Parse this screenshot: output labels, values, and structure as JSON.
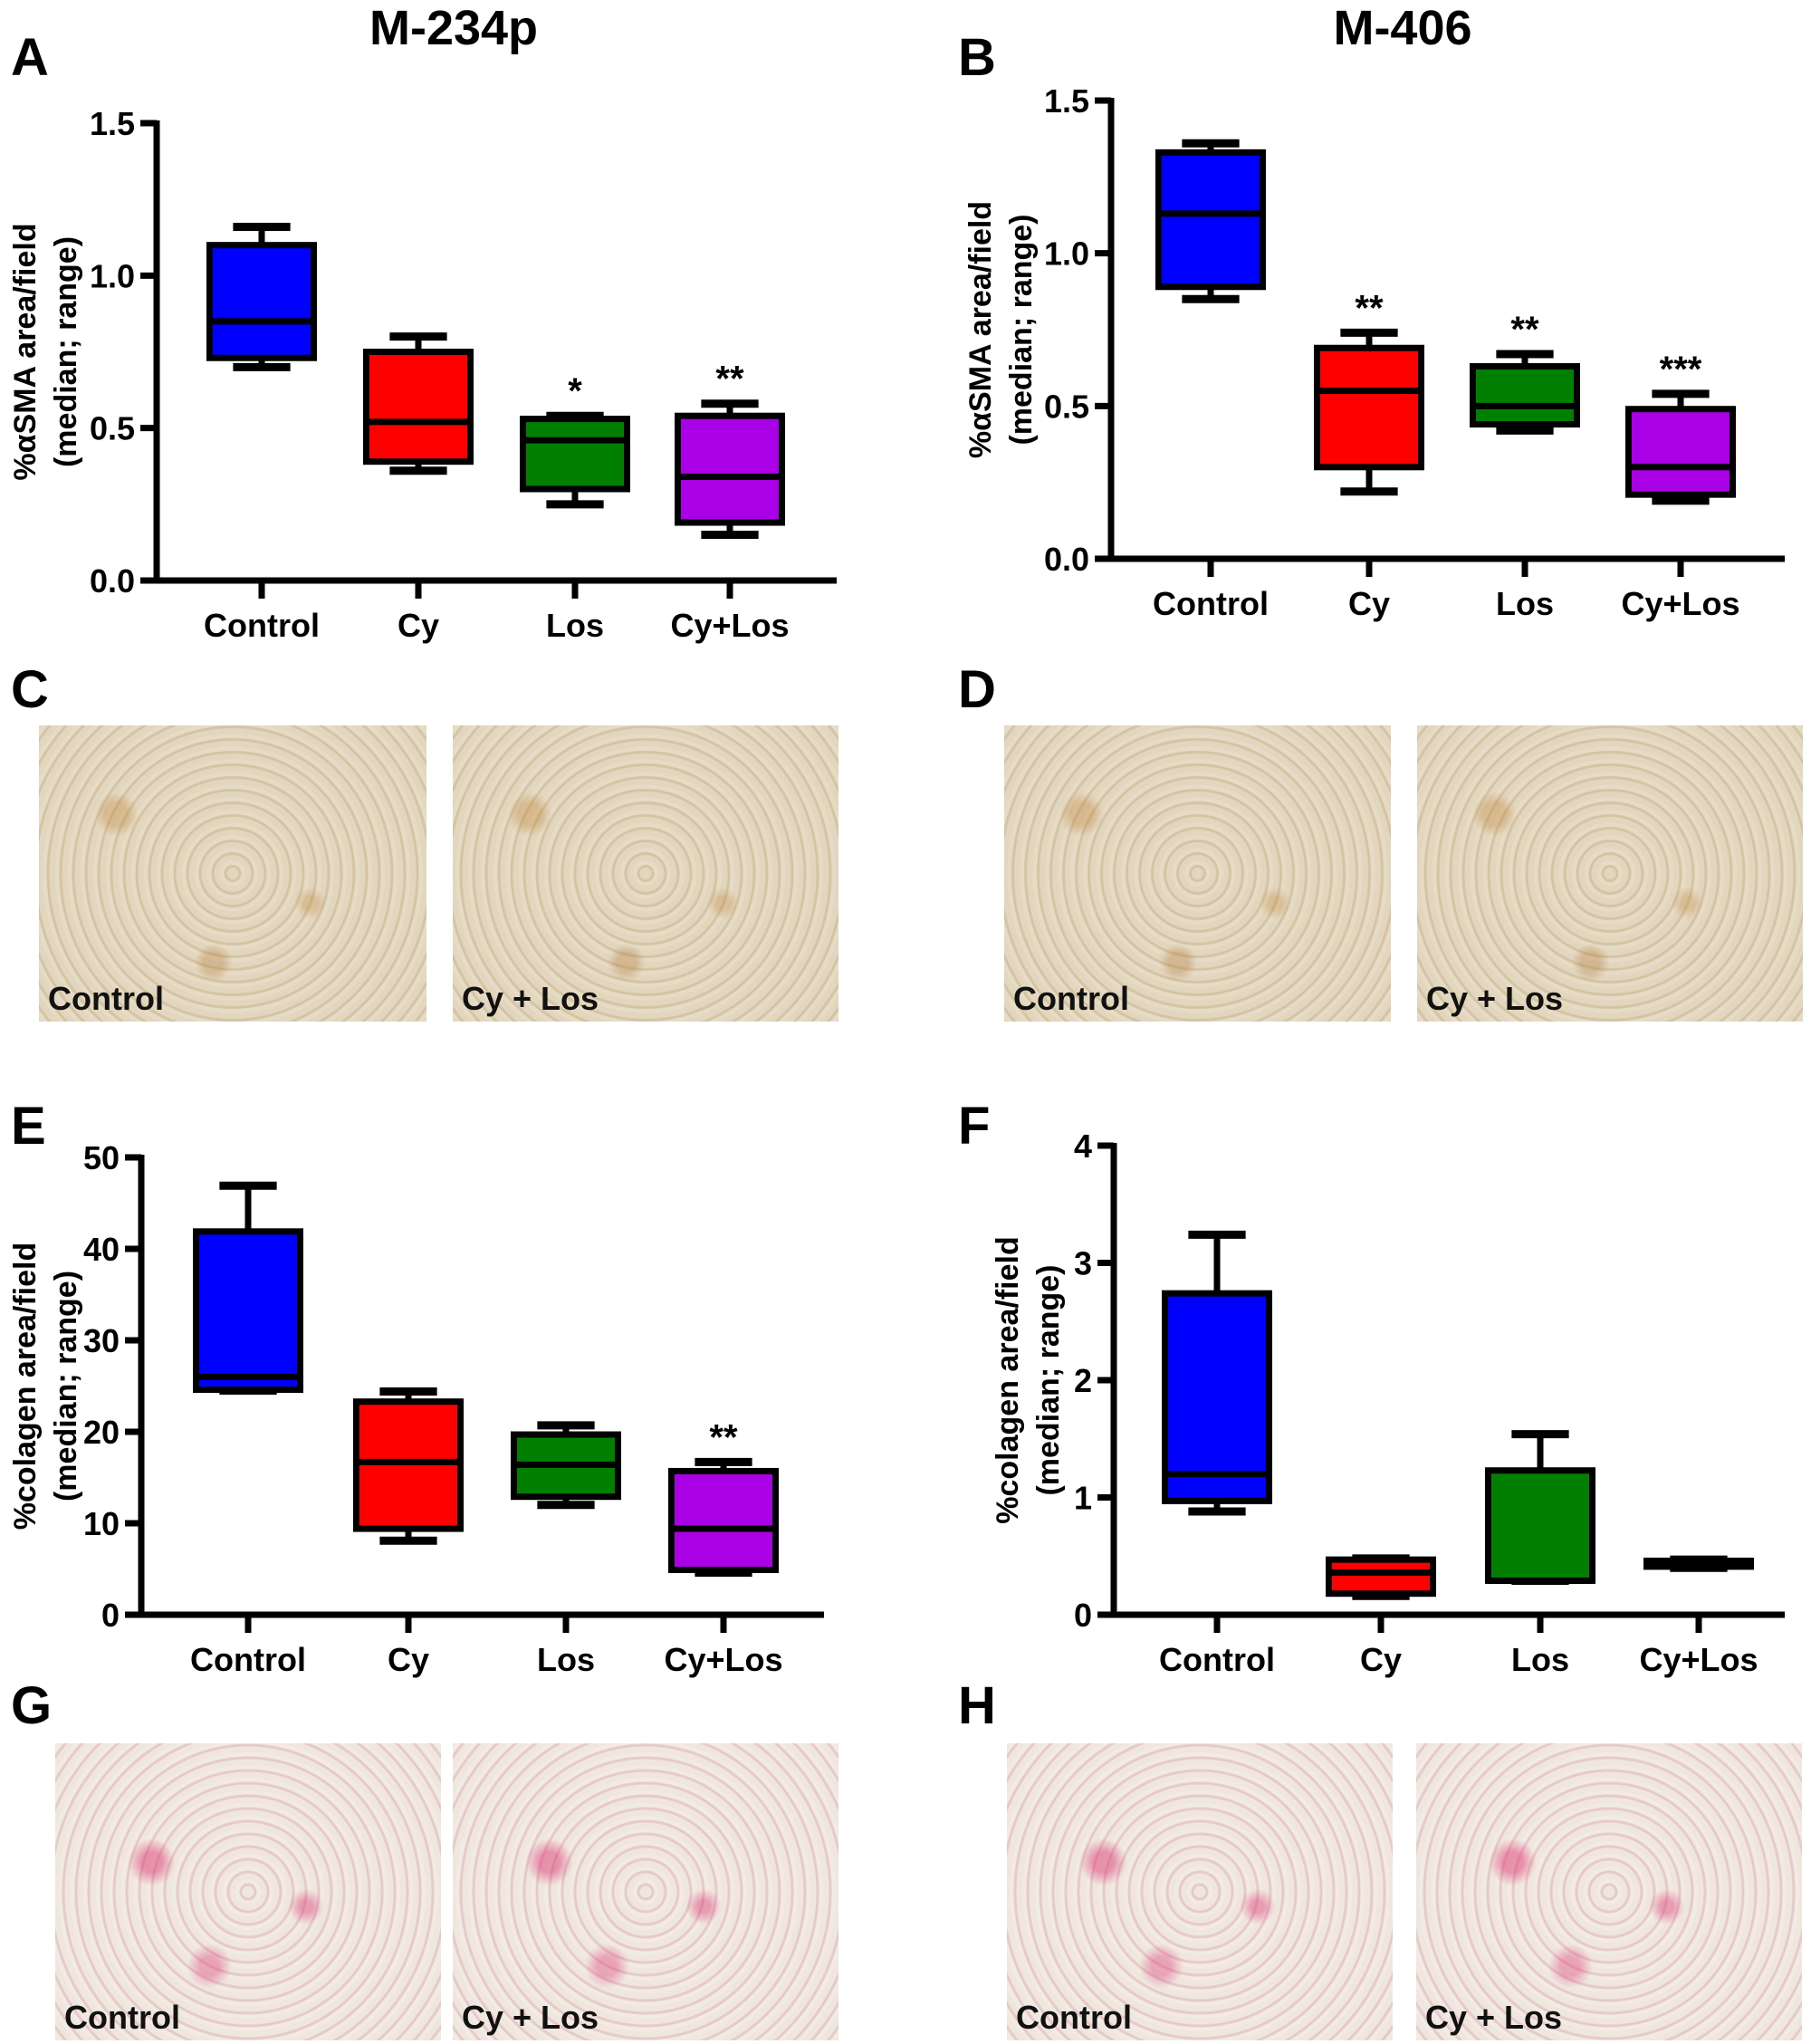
{
  "panel_titles": {
    "left": "M-234p",
    "right": "M-406"
  },
  "panel_letters": {
    "A": "A",
    "B": "B",
    "C": "C",
    "D": "D",
    "E": "E",
    "F": "F",
    "G": "G",
    "H": "H"
  },
  "micrographs": {
    "C": [
      "Control",
      "Cy + Los"
    ],
    "D": [
      "Control",
      "Cy + Los"
    ],
    "G": [
      "Control",
      "Cy + Los"
    ],
    "H": [
      "Control",
      "Cy + Los"
    ]
  },
  "colors": {
    "Control": "#0000ff",
    "Cy": "#ff0000",
    "Los": "#007f00",
    "Cy+Los": "#aa00e6"
  },
  "chart_data": [
    {
      "panel": "A",
      "type": "boxplot",
      "ylabel": [
        "%αSMA area/field",
        "(median; range)"
      ],
      "ylim": [
        0,
        1.5
      ],
      "yticks": [
        "0.0",
        "0.5",
        "1.0",
        "1.5"
      ],
      "categories": [
        "Control",
        "Cy",
        "Los",
        "Cy+Los"
      ],
      "boxes": [
        {
          "min": 0.7,
          "q1": 0.73,
          "median": 0.85,
          "q3": 1.1,
          "max": 1.16,
          "annotation": ""
        },
        {
          "min": 0.36,
          "q1": 0.39,
          "median": 0.52,
          "q3": 0.75,
          "max": 0.8,
          "annotation": ""
        },
        {
          "min": 0.25,
          "q1": 0.3,
          "median": 0.46,
          "q3": 0.53,
          "max": 0.54,
          "annotation": "*"
        },
        {
          "min": 0.15,
          "q1": 0.19,
          "median": 0.34,
          "q3": 0.54,
          "max": 0.58,
          "annotation": "**"
        }
      ]
    },
    {
      "panel": "B",
      "type": "boxplot",
      "ylabel": [
        "%αSMA area/field",
        "(median; range)"
      ],
      "ylim": [
        0,
        1.5
      ],
      "yticks": [
        "0.0",
        "0.5",
        "1.0",
        "1.5"
      ],
      "categories": [
        "Control",
        "Cy",
        "Los",
        "Cy+Los"
      ],
      "boxes": [
        {
          "min": 0.85,
          "q1": 0.89,
          "median": 1.13,
          "q3": 1.33,
          "max": 1.36,
          "annotation": ""
        },
        {
          "min": 0.22,
          "q1": 0.3,
          "median": 0.55,
          "q3": 0.69,
          "max": 0.74,
          "annotation": "**"
        },
        {
          "min": 0.42,
          "q1": 0.44,
          "median": 0.5,
          "q3": 0.63,
          "max": 0.67,
          "annotation": "**"
        },
        {
          "min": 0.19,
          "q1": 0.21,
          "median": 0.3,
          "q3": 0.49,
          "max": 0.54,
          "annotation": "***"
        }
      ]
    },
    {
      "panel": "E",
      "type": "boxplot",
      "ylabel": [
        "%colagen area/field",
        "(median; range)"
      ],
      "ylim": [
        0,
        50
      ],
      "yticks": [
        "0",
        "10",
        "20",
        "30",
        "40",
        "50"
      ],
      "categories": [
        "Control",
        "Cy",
        "Los",
        "Cy+Los"
      ],
      "boxes": [
        {
          "min": 24.5,
          "q1": 24.6,
          "median": 26.0,
          "q3": 41.9,
          "max": 46.9,
          "annotation": ""
        },
        {
          "min": 8.1,
          "q1": 9.4,
          "median": 16.7,
          "q3": 23.3,
          "max": 24.4,
          "annotation": ""
        },
        {
          "min": 12.0,
          "q1": 12.9,
          "median": 16.4,
          "q3": 19.7,
          "max": 20.7,
          "annotation": ""
        },
        {
          "min": 4.6,
          "q1": 4.9,
          "median": 9.4,
          "q3": 15.7,
          "max": 16.7,
          "annotation": "**"
        }
      ]
    },
    {
      "panel": "F",
      "type": "boxplot",
      "ylabel": [
        "%colagen area/field",
        "(median; range)"
      ],
      "ylim": [
        0,
        4
      ],
      "yticks": [
        "0",
        "1",
        "2",
        "3",
        "4"
      ],
      "categories": [
        "Control",
        "Cy",
        "Los",
        "Cy+Los"
      ],
      "boxes": [
        {
          "min": 0.88,
          "q1": 0.97,
          "median": 1.2,
          "q3": 2.74,
          "max": 3.24,
          "annotation": ""
        },
        {
          "min": 0.16,
          "q1": 0.18,
          "median": 0.36,
          "q3": 0.47,
          "max": 0.48,
          "annotation": ""
        },
        {
          "min": 0.29,
          "q1": 0.29,
          "median": 0.29,
          "q3": 1.23,
          "max": 1.54,
          "annotation": ""
        },
        {
          "min": 0.4,
          "q1": 0.41,
          "median": 0.44,
          "q3": 0.46,
          "max": 0.47,
          "annotation": ""
        }
      ]
    }
  ]
}
